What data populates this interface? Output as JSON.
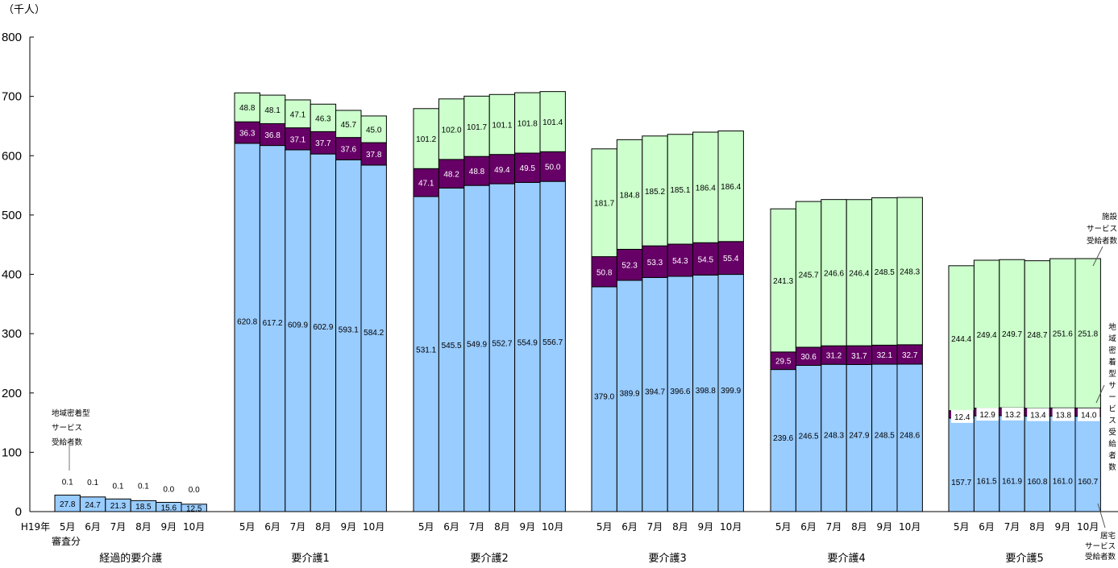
{
  "chart_data": {
    "type": "bar",
    "stacked": true,
    "unit_label": "（千人）",
    "ylim": [
      0,
      800
    ],
    "yticks": [
      "0",
      "100",
      "200",
      "300",
      "400",
      "500",
      "600",
      "700",
      "800"
    ],
    "grid": false,
    "colors": {
      "home": "#99ccff",
      "community": "#660066",
      "facility": "#ccffcc"
    },
    "series_names": {
      "home": "居宅サービス受給者数",
      "community": "地域密着型サービス受給者数",
      "facility": "施設サービス受給者数"
    },
    "annotations": {
      "community_left": [
        "地域密着型",
        "サービス",
        "受給者数"
      ],
      "facility_right": [
        "施設",
        "サービス",
        "受給者数"
      ],
      "community_right": [
        "地",
        "域",
        "密",
        "着",
        "型",
        "サ",
        "ー",
        "ビ",
        "ス",
        "受",
        "給",
        "者",
        "数"
      ],
      "home_right": [
        "居宅",
        "サービス",
        "受給者数"
      ]
    },
    "period_label": [
      "H19年",
      "審査分"
    ],
    "groups": [
      {
        "name": "経過的要介護",
        "months": [
          "5月",
          "6月",
          "7月",
          "8月",
          "9月",
          "10月"
        ],
        "home": [
          27.8,
          24.7,
          21.3,
          18.5,
          15.6,
          12.5
        ],
        "home_labels": [
          "27.8",
          "24.7",
          "21.3",
          "18.5",
          "15.6",
          "12.5"
        ],
        "community": [
          0.1,
          0.1,
          0.1,
          0.1,
          0.0,
          0.0
        ],
        "community_labels": [
          "0.1",
          "0.1",
          "0.1",
          "0.1",
          "0.0",
          "0.0"
        ],
        "facility": [
          0,
          0,
          0,
          0,
          0,
          0
        ],
        "facility_labels": []
      },
      {
        "name": "要介護1",
        "months": [
          "5月",
          "6月",
          "7月",
          "8月",
          "9月",
          "10月"
        ],
        "home": [
          620.8,
          617.2,
          609.9,
          602.9,
          593.1,
          584.2
        ],
        "home_labels": [
          "620.8",
          "617.2",
          "609.9",
          "602.9",
          "593.1",
          "584.2"
        ],
        "community": [
          36.3,
          36.8,
          37.1,
          37.7,
          37.6,
          37.8
        ],
        "community_labels": [
          "36.3",
          "36.8",
          "37.1",
          "37.7",
          "37.6",
          "37.8"
        ],
        "facility": [
          48.8,
          48.1,
          47.1,
          46.3,
          45.7,
          45.0
        ],
        "facility_labels": [
          "48.8",
          "48.1",
          "47.1",
          "46.3",
          "45.7",
          "45.0"
        ]
      },
      {
        "name": "要介護2",
        "months": [
          "5月",
          "6月",
          "7月",
          "8月",
          "9月",
          "10月"
        ],
        "home": [
          531.1,
          545.5,
          549.9,
          552.7,
          554.9,
          556.7
        ],
        "home_labels": [
          "531.1",
          "545.5",
          "549.9",
          "552.7",
          "554.9",
          "556.7"
        ],
        "community": [
          47.1,
          48.2,
          48.8,
          49.4,
          49.5,
          50.0
        ],
        "community_labels": [
          "47.1",
          "48.2",
          "48.8",
          "49.4",
          "49.5",
          "50.0"
        ],
        "facility": [
          101.2,
          102.0,
          101.7,
          101.1,
          101.8,
          101.4
        ],
        "facility_labels": [
          "101.2",
          "102.0",
          "101.7",
          "101.1",
          "101.8",
          "101.4"
        ]
      },
      {
        "name": "要介護3",
        "months": [
          "5月",
          "6月",
          "7月",
          "8月",
          "9月",
          "10月"
        ],
        "home": [
          379.0,
          389.9,
          394.7,
          396.6,
          398.8,
          399.9
        ],
        "home_labels": [
          "379.0",
          "389.9",
          "394.7",
          "396.6",
          "398.8",
          "399.9"
        ],
        "community": [
          50.8,
          52.3,
          53.3,
          54.3,
          54.5,
          55.4
        ],
        "community_labels": [
          "50.8",
          "52.3",
          "53.3",
          "54.3",
          "54.5",
          "55.4"
        ],
        "facility": [
          181.7,
          184.8,
          185.2,
          185.1,
          186.4,
          186.4
        ],
        "facility_labels": [
          "181.7",
          "184.8",
          "185.2",
          "185.1",
          "186.4",
          "186.4"
        ]
      },
      {
        "name": "要介護4",
        "months": [
          "5月",
          "6月",
          "7月",
          "8月",
          "9月",
          "10月"
        ],
        "home": [
          239.6,
          246.5,
          248.3,
          247.9,
          248.5,
          248.6
        ],
        "home_labels": [
          "239.6",
          "246.5",
          "248.3",
          "247.9",
          "248.5",
          "248.6"
        ],
        "community": [
          29.5,
          30.6,
          31.2,
          31.7,
          32.1,
          32.7
        ],
        "community_labels": [
          "29.5",
          "30.6",
          "31.2",
          "31.7",
          "32.1",
          "32.7"
        ],
        "facility": [
          241.3,
          245.7,
          246.6,
          246.4,
          248.5,
          248.3
        ],
        "facility_labels": [
          "241.3",
          "245.7",
          "246.6",
          "246.4",
          "248.5",
          "248.3"
        ]
      },
      {
        "name": "要介護5",
        "months": [
          "5月",
          "6月",
          "7月",
          "8月",
          "9月",
          "10月"
        ],
        "home": [
          157.7,
          161.5,
          161.9,
          160.8,
          161.0,
          160.7
        ],
        "home_labels": [
          "157.7",
          "161.5",
          "161.9",
          "160.8",
          "161.0",
          "160.7"
        ],
        "community": [
          12.4,
          12.9,
          13.2,
          13.4,
          13.8,
          14.0
        ],
        "community_labels": [
          "12.4",
          "12.9",
          "13.2",
          "13.4",
          "13.8",
          "14.0"
        ],
        "facility": [
          244.4,
          249.4,
          249.7,
          248.7,
          251.6,
          251.8
        ],
        "facility_labels": [
          "244.4",
          "249.4",
          "249.7",
          "248.7",
          "251.6",
          "251.8"
        ]
      }
    ]
  }
}
